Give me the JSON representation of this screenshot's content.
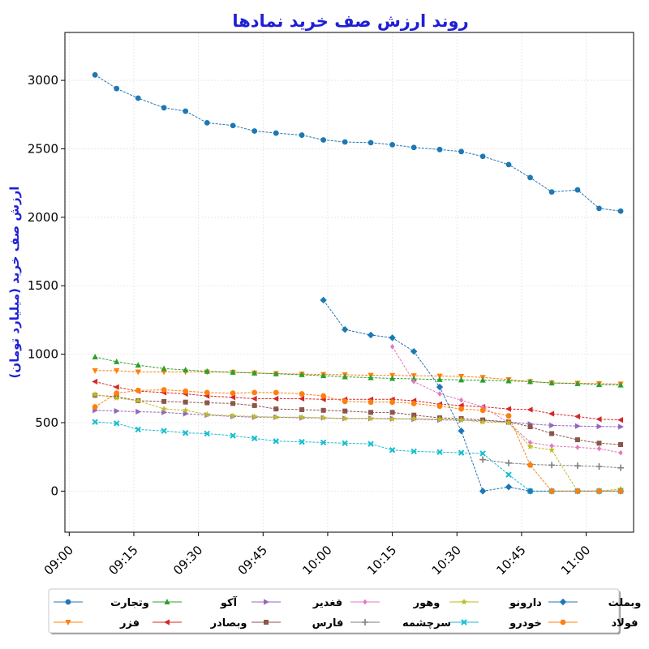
{
  "chart_data": {
    "type": "line",
    "title": "روند ارزش صف خرید نمادها",
    "xlabel": "",
    "ylabel": "ارزش صف خرید (میلیارد تومان)",
    "x": [
      "09:06",
      "09:11",
      "09:16",
      "09:22",
      "09:27",
      "09:32",
      "09:38",
      "09:43",
      "09:48",
      "09:54",
      "09:59",
      "10:04",
      "10:10",
      "10:15",
      "10:20",
      "10:26",
      "10:31",
      "10:36",
      "10:42",
      "10:47",
      "10:52",
      "10:58",
      "11:03",
      "11:08"
    ],
    "xticks": [
      "09:00",
      "09:15",
      "09:30",
      "09:45",
      "10:00",
      "10:15",
      "10:30",
      "10:45",
      "11:00"
    ],
    "xlim": [
      "08:59",
      "11:11"
    ],
    "ylim": [
      -300,
      3350
    ],
    "yticks": [
      0,
      500,
      1000,
      1500,
      2000,
      2500,
      3000
    ],
    "grid": true,
    "legend_position": "bottom",
    "series": [
      {
        "name": "وتجارت",
        "color": "#1f77b4",
        "marker": "circle",
        "values": [
          3040,
          2940,
          2870,
          2800,
          2775,
          2690,
          2670,
          2630,
          2615,
          2600,
          2565,
          2550,
          2545,
          2530,
          2510,
          2495,
          2480,
          2445,
          2385,
          2290,
          2185,
          2200,
          2065,
          2045
        ]
      },
      {
        "name": "فزر",
        "color": "#ff7f0e",
        "marker": "tri-down",
        "values": [
          880,
          880,
          870,
          870,
          870,
          870,
          868,
          863,
          858,
          855,
          852,
          850,
          846,
          845,
          843,
          840,
          838,
          830,
          815,
          800,
          790,
          788,
          785,
          782
        ]
      },
      {
        "name": "آکو",
        "color": "#2ca02c",
        "marker": "tri-up",
        "values": [
          980,
          945,
          920,
          895,
          885,
          875,
          868,
          862,
          857,
          850,
          843,
          835,
          828,
          823,
          820,
          815,
          812,
          810,
          805,
          800,
          790,
          785,
          778,
          775
        ]
      },
      {
        "name": "وبصادر",
        "color": "#d62728",
        "marker": "tri-left",
        "values": [
          800,
          760,
          730,
          720,
          710,
          695,
          685,
          675,
          675,
          675,
          670,
          670,
          670,
          670,
          660,
          635,
          625,
          615,
          600,
          595,
          565,
          545,
          525,
          520
        ]
      },
      {
        "name": "فغدیر",
        "color": "#9467bd",
        "marker": "tri-right",
        "values": [
          590,
          585,
          580,
          575,
          565,
          555,
          545,
          540,
          540,
          535,
          535,
          530,
          530,
          530,
          525,
          520,
          518,
          515,
          505,
          490,
          480,
          475,
          472,
          470
        ]
      },
      {
        "name": "فارس",
        "color": "#8c564b",
        "marker": "square",
        "values": [
          700,
          690,
          660,
          655,
          650,
          645,
          640,
          625,
          600,
          595,
          590,
          585,
          575,
          575,
          555,
          535,
          530,
          520,
          505,
          470,
          420,
          375,
          350,
          340
        ]
      },
      {
        "name": "وهور",
        "color": "#e377c2",
        "marker": "diamond",
        "values": [
          null,
          null,
          null,
          null,
          null,
          null,
          null,
          null,
          null,
          null,
          null,
          null,
          null,
          1055,
          800,
          710,
          665,
          615,
          500,
          355,
          330,
          320,
          310,
          280
        ]
      },
      {
        "name": "سرچشمه",
        "color": "#7f7f7f",
        "marker": "plus",
        "values": [
          null,
          null,
          null,
          null,
          null,
          null,
          null,
          null,
          null,
          null,
          null,
          null,
          null,
          null,
          null,
          null,
          null,
          230,
          205,
          195,
          190,
          185,
          180,
          170
        ]
      },
      {
        "name": "دارونو",
        "color": "#bcbd22",
        "marker": "star",
        "values": [
          705,
          680,
          660,
          600,
          590,
          560,
          550,
          545,
          540,
          540,
          535,
          530,
          530,
          525,
          530,
          525,
          520,
          505,
          500,
          325,
          300,
          0,
          0,
          15
        ]
      },
      {
        "name": "خودرو",
        "color": "#17becf",
        "marker": "x",
        "values": [
          505,
          495,
          450,
          440,
          425,
          420,
          405,
          385,
          365,
          360,
          355,
          350,
          345,
          300,
          290,
          285,
          280,
          275,
          120,
          0,
          0,
          0,
          0,
          0
        ]
      },
      {
        "name": "وبملت",
        "color": "#1f77b4",
        "marker": "diamond-big",
        "values": [
          null,
          null,
          null,
          null,
          null,
          null,
          null,
          null,
          null,
          null,
          1395,
          1180,
          1140,
          1120,
          1020,
          760,
          440,
          0,
          30,
          0,
          0,
          0,
          0,
          0
        ]
      },
      {
        "name": "فولاد",
        "color": "#ff7f0e",
        "marker": "circle",
        "values": [
          615,
          715,
          735,
          740,
          730,
          720,
          715,
          720,
          720,
          710,
          695,
          655,
          650,
          650,
          640,
          620,
          600,
          590,
          550,
          190,
          0,
          0,
          0,
          0
        ]
      }
    ]
  }
}
